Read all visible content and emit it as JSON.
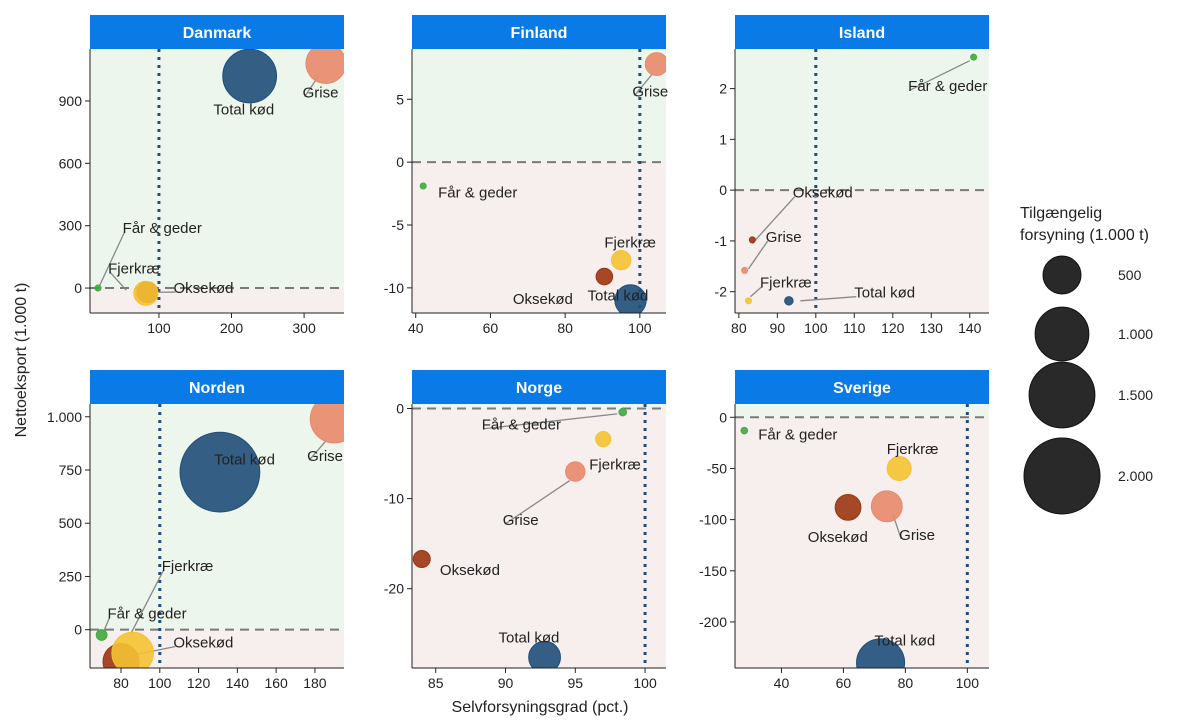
{
  "chart_data": {
    "type": "scatter",
    "xlabel": "Selvforsyningsgrad (pct.)",
    "ylabel": "Nettoeksport (1.000 t)",
    "reference_lines": {
      "x": 100,
      "y": 0
    },
    "colors": {
      "Total kød": "#1f4e79",
      "Grise": "#e8896a",
      "Oksekød": "#9b3512",
      "Fjerkræ": "#f5c232",
      "Får & geder": "#3faa3f",
      "strip": "#0a7ae6",
      "positive_bg": "#edf6ec",
      "negative_bg": "#f6efed",
      "vline": "#1f4e79",
      "hline": "#7a7a7a"
    },
    "legend": {
      "title_lines": [
        "Tilgængelig",
        "forsyning (1.000 t)"
      ],
      "entries": [
        {
          "value": 500,
          "label": "500"
        },
        {
          "value": 1000,
          "label": "1.000"
        },
        {
          "value": 1500,
          "label": "1.500"
        },
        {
          "value": 2000,
          "label": "2.000"
        }
      ]
    },
    "panels": [
      {
        "title": "Danmark",
        "xlim": [
          5,
          355
        ],
        "ylim": [
          -120,
          1150
        ],
        "xticks": [
          100,
          200,
          300
        ],
        "xtick_labels": [
          "100",
          "200",
          "300"
        ],
        "yticks": [
          0,
          300,
          600,
          900
        ],
        "ytick_labels": [
          "0",
          "300",
          "600",
          "900"
        ],
        "points": [
          {
            "series": "Total kød",
            "x": 225,
            "y": 1020,
            "supply": 1000
          },
          {
            "series": "Grise",
            "x": 330,
            "y": 1080,
            "supply": 550
          },
          {
            "series": "Får & geder",
            "x": 16,
            "y": 0,
            "supply": 5
          },
          {
            "series": "Fjerkræ",
            "x": 82,
            "y": -25,
            "supply": 200
          },
          {
            "series": "Oksekød",
            "x": 84,
            "y": -20,
            "supply": 150
          }
        ],
        "labels": [
          {
            "text": "Total kød",
            "x": 175,
            "y": 860,
            "ax": 205,
            "ay": 950,
            "anchor": "start",
            "line": false
          },
          {
            "text": "Grise",
            "x": 298,
            "y": 940,
            "ax": 320,
            "ay": 1020,
            "anchor": "start",
            "line": true
          },
          {
            "text": "Får & geder",
            "x": 50,
            "y": 290,
            "ax": 18,
            "ay": 10,
            "anchor": "start",
            "line": true
          },
          {
            "text": "Fjerkræ",
            "x": 30,
            "y": 95,
            "ax": 55,
            "ay": -10,
            "anchor": "start",
            "line": true
          },
          {
            "text": "Oksekød",
            "x": 120,
            "y": 0,
            "ax": 100,
            "ay": -20,
            "anchor": "start",
            "line": true
          }
        ]
      },
      {
        "title": "Finland",
        "xlim": [
          39,
          107
        ],
        "ylim": [
          -12,
          9
        ],
        "xticks": [
          40,
          60,
          80,
          100
        ],
        "xtick_labels": [
          "40",
          "60",
          "80",
          "100"
        ],
        "yticks": [
          -10,
          -5,
          0,
          5
        ],
        "ytick_labels": [
          "-10",
          "-5",
          "0",
          "5"
        ],
        "points": [
          {
            "series": "Grise",
            "x": 104.5,
            "y": 7.8,
            "supply": 180
          },
          {
            "series": "Får & geder",
            "x": 42,
            "y": -1.9,
            "supply": 3
          },
          {
            "series": "Fjerkræ",
            "x": 95,
            "y": -7.8,
            "supply": 130
          },
          {
            "series": "Oksekød",
            "x": 90.5,
            "y": -9.1,
            "supply": 95
          },
          {
            "series": "Total kød",
            "x": 97.5,
            "y": -11,
            "supply": 340
          }
        ],
        "labels": [
          {
            "text": "Grise",
            "x": 98,
            "y": 5.6,
            "ax": 103.3,
            "ay": 7.0,
            "anchor": "start",
            "line": true
          },
          {
            "text": "Får & geder",
            "x": 46,
            "y": -2.4,
            "ax": 42,
            "ay": -1.9,
            "anchor": "start",
            "line": false
          },
          {
            "text": "Fjerkræ",
            "x": 90.5,
            "y": -6.4,
            "ax": 95,
            "ay": -7,
            "anchor": "start",
            "line": false
          },
          {
            "text": "Oksekød",
            "x": 66,
            "y": -10.9,
            "ax": 90,
            "ay": -9.3,
            "anchor": "start",
            "line": false
          },
          {
            "text": "Total kød",
            "x": 86,
            "y": -10.6,
            "ax": 97,
            "ay": -10.6,
            "anchor": "start",
            "line": false
          }
        ]
      },
      {
        "title": "Island",
        "xlim": [
          79,
          145
        ],
        "ylim": [
          -2.42,
          2.78
        ],
        "xticks": [
          80,
          90,
          100,
          110,
          120,
          130,
          140
        ],
        "xtick_labels": [
          "80",
          "90",
          "100",
          "110",
          "120",
          "130",
          "140"
        ],
        "yticks": [
          -2,
          -1,
          0,
          1,
          2
        ],
        "ytick_labels": [
          "-2",
          "-1",
          "0",
          "1",
          "2"
        ],
        "points": [
          {
            "series": "Får & geder",
            "x": 141,
            "y": 2.62,
            "supply": 6
          },
          {
            "series": "Oksekød",
            "x": 83.5,
            "y": -0.98,
            "supply": 4
          },
          {
            "series": "Grise",
            "x": 81.5,
            "y": -1.58,
            "supply": 5
          },
          {
            "series": "Fjerkræ",
            "x": 82.5,
            "y": -2.18,
            "supply": 6
          },
          {
            "series": "Total kød",
            "x": 93,
            "y": -2.18,
            "supply": 25
          }
        ],
        "labels": [
          {
            "text": "Får & geder",
            "x": 124,
            "y": 2.05,
            "ax": 140,
            "ay": 2.55,
            "anchor": "start",
            "line": true
          },
          {
            "text": "Oksekød",
            "x": 94,
            "y": -0.05,
            "ax": 83.5,
            "ay": -1.05,
            "anchor": "start",
            "line": true
          },
          {
            "text": "Grise",
            "x": 87,
            "y": -0.92,
            "ax": 82.5,
            "ay": -1.55,
            "anchor": "start",
            "line": true
          },
          {
            "text": "Fjerkræ",
            "x": 85.5,
            "y": -1.82,
            "ax": 83,
            "ay": -2.1,
            "anchor": "start",
            "line": true
          },
          {
            "text": "Total kød",
            "x": 110,
            "y": -2.02,
            "ax": 96,
            "ay": -2.18,
            "anchor": "start",
            "line": true
          }
        ]
      },
      {
        "title": "Norden",
        "xlim": [
          64,
          195
        ],
        "ylim": [
          -180,
          1060
        ],
        "xticks": [
          80,
          100,
          120,
          140,
          160,
          180
        ],
        "xtick_labels": [
          "80",
          "100",
          "120",
          "140",
          "160",
          "180"
        ],
        "yticks": [
          0,
          250,
          500,
          750,
          1000
        ],
        "ytick_labels": [
          "0",
          "250",
          "500",
          "750",
          "1.000"
        ],
        "points": [
          {
            "series": "Total kød",
            "x": 131,
            "y": 740,
            "supply": 2200
          },
          {
            "series": "Grise",
            "x": 190,
            "y": 990,
            "supply": 800
          },
          {
            "series": "Oksekød",
            "x": 80,
            "y": -150,
            "supply": 450
          },
          {
            "series": "Fjerkræ",
            "x": 86,
            "y": -110,
            "supply": 600
          },
          {
            "series": "Får & geder",
            "x": 70,
            "y": -25,
            "supply": 40
          }
        ],
        "labels": [
          {
            "text": "Total kød",
            "x": 128,
            "y": 800,
            "ax": 128,
            "ay": 800,
            "anchor": "start",
            "line": false
          },
          {
            "text": "Grise",
            "x": 176,
            "y": 815,
            "ax": 186,
            "ay": 890,
            "anchor": "start",
            "line": true
          },
          {
            "text": "Fjerkræ",
            "x": 101,
            "y": 300,
            "ax": 85,
            "ay": -20,
            "anchor": "start",
            "line": true
          },
          {
            "text": "Får & geder",
            "x": 73,
            "y": 75,
            "ax": 71,
            "ay": -10,
            "anchor": "start",
            "line": true
          },
          {
            "text": "Oksekød",
            "x": 107,
            "y": -60,
            "ax": 86,
            "ay": -120,
            "anchor": "start",
            "line": true
          }
        ]
      },
      {
        "title": "Norge",
        "xlim": [
          83.3,
          101.5
        ],
        "ylim": [
          -28.8,
          0.5
        ],
        "xticks": [
          85,
          90,
          95,
          100
        ],
        "xtick_labels": [
          "85",
          "90",
          "95",
          "100"
        ],
        "yticks": [
          -20,
          -10,
          0
        ],
        "ytick_labels": [
          "-20",
          "-10",
          "0"
        ],
        "points": [
          {
            "series": "Får & geder",
            "x": 98.4,
            "y": -0.4,
            "supply": 20
          },
          {
            "series": "Fjerkræ",
            "x": 97,
            "y": -3.4,
            "supply": 80
          },
          {
            "series": "Grise",
            "x": 95,
            "y": -7,
            "supply": 130
          },
          {
            "series": "Oksekød",
            "x": 84,
            "y": -16.7,
            "supply": 100
          },
          {
            "series": "Total kød",
            "x": 92.8,
            "y": -27.6,
            "supply": 350
          }
        ],
        "labels": [
          {
            "text": "Får & geder",
            "x": 88.3,
            "y": -1.8,
            "ax": 98,
            "ay": -0.6,
            "anchor": "start",
            "line": true
          },
          {
            "text": "Fjerkræ",
            "x": 96,
            "y": -6.2,
            "ax": 97,
            "ay": -4,
            "anchor": "start",
            "line": false
          },
          {
            "text": "Grise",
            "x": 89.8,
            "y": -12.4,
            "ax": 94.6,
            "ay": -8,
            "anchor": "start",
            "line": true
          },
          {
            "text": "Oksekød",
            "x": 85.3,
            "y": -17.9,
            "ax": 85.3,
            "ay": -17.9,
            "anchor": "start",
            "line": false
          },
          {
            "text": "Total kød",
            "x": 89.5,
            "y": -25.4,
            "ax": 89.5,
            "ay": -25.4,
            "anchor": "start",
            "line": false
          }
        ]
      },
      {
        "title": "Sverige",
        "xlim": [
          25,
          107
        ],
        "ylim": [
          -245,
          13
        ],
        "xticks": [
          40,
          60,
          80,
          100
        ],
        "xtick_labels": [
          "40",
          "60",
          "80",
          "100"
        ],
        "yticks": [
          -200,
          -150,
          -100,
          -50,
          0
        ],
        "ytick_labels": [
          "-200",
          "-150",
          "-100",
          "-50",
          "0"
        ],
        "points": [
          {
            "series": "Får & geder",
            "x": 28,
            "y": -13,
            "supply": 15
          },
          {
            "series": "Fjerkræ",
            "x": 78,
            "y": -50,
            "supply": 200
          },
          {
            "series": "Oksekød",
            "x": 61.5,
            "y": -88,
            "supply": 230
          },
          {
            "series": "Grise",
            "x": 74,
            "y": -87,
            "supply": 330
          },
          {
            "series": "Total kød",
            "x": 72,
            "y": -240,
            "supply": 800
          }
        ],
        "labels": [
          {
            "text": "Får & geder",
            "x": 32.5,
            "y": -17,
            "ax": 32.5,
            "ay": -17,
            "anchor": "start",
            "line": false
          },
          {
            "text": "Fjerkræ",
            "x": 74,
            "y": -31,
            "ax": 74,
            "ay": -31,
            "anchor": "start",
            "line": false
          },
          {
            "text": "Oksekød",
            "x": 48.5,
            "y": -117,
            "ax": 58,
            "ay": -100,
            "anchor": "start",
            "line": false
          },
          {
            "text": "Grise",
            "x": 78,
            "y": -115,
            "ax": 76,
            "ay": -95,
            "anchor": "start",
            "line": true
          },
          {
            "text": "Total kød",
            "x": 70,
            "y": -218,
            "ax": 70,
            "ay": -218,
            "anchor": "start",
            "line": false
          }
        ]
      }
    ]
  }
}
